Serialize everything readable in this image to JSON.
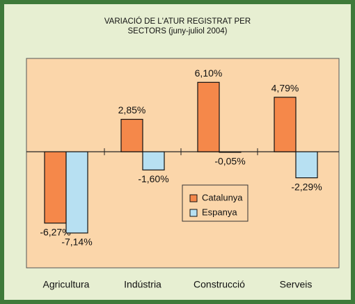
{
  "chart_data": {
    "type": "bar",
    "title": [
      "VARIACIÓ DE L'ATUR REGISTRAT PER",
      "SECTORS (juny-juliol 2004)"
    ],
    "categories": [
      "Agricultura",
      "Indústria",
      "Construcció",
      "Serveis"
    ],
    "series": [
      {
        "name": "Catalunya",
        "color": "#f5884a",
        "values": [
          -6.27,
          2.85,
          6.1,
          4.79
        ],
        "value_labels": [
          "-6,27%",
          "2,85%",
          "6,10%",
          "4,79%"
        ]
      },
      {
        "name": "Espanya",
        "color": "#b7e0f2",
        "values": [
          -7.14,
          -1.6,
          -0.05,
          -2.29
        ],
        "value_labels": [
          "-7,14%",
          "-1,60%",
          "-0,05%",
          "-2,29%"
        ]
      }
    ],
    "ylim": [
      -10.2,
      8.2
    ]
  }
}
